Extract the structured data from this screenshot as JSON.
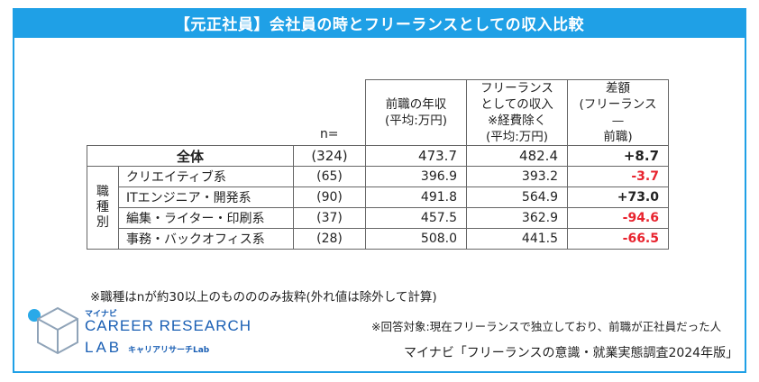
{
  "header": {
    "title": "【元正社員】会社員の時とフリーランスとしての収入比較"
  },
  "chart_data": {
    "type": "table",
    "columns": {
      "n": "n=",
      "prev_income": [
        "前職の年収",
        "(平均:万円)"
      ],
      "freelance_income": [
        "フリーランス",
        "としての収入",
        "※経費除く",
        "(平均:万円)"
      ],
      "diff": [
        "差額",
        "(フリーランス",
        "—",
        "前職)"
      ]
    },
    "total": {
      "label": "全体",
      "n": "(324)",
      "prev": "473.7",
      "free": "482.4",
      "diff": "+8.7"
    },
    "group_label": [
      "職",
      "種",
      "別"
    ],
    "rows": [
      {
        "label": "クリエイティブ系",
        "n": "(65)",
        "prev": "396.9",
        "free": "393.2",
        "diff": "-3.7"
      },
      {
        "label": "ITエンジニア・開発系",
        "n": "(90)",
        "prev": "491.8",
        "free": "564.9",
        "diff": "+73.0"
      },
      {
        "label": "編集・ライター・印刷系",
        "n": "(37)",
        "prev": "457.5",
        "free": "362.9",
        "diff": "-94.6"
      },
      {
        "label": "事務・バックオフィス系",
        "n": "(28)",
        "prev": "508.0",
        "free": "441.5",
        "diff": "-66.5"
      }
    ],
    "colors": {
      "negative": "#e8232e",
      "header": "#1fa0e6"
    }
  },
  "notes": {
    "note1": "※職種はnが約30以上のものののみ抜粋(外れ値は除外して計算)",
    "note2": "※回答対象:現在フリーランスで独立しており、前職が正社員だった人",
    "source": "マイナビ「フリーランスの意識・就業実態調査2024年版」"
  },
  "logo": {
    "small": "マイナビ",
    "main": "CAREER RESEARCH",
    "lab": "LAB",
    "sub": "キャリアリサーチLab"
  }
}
